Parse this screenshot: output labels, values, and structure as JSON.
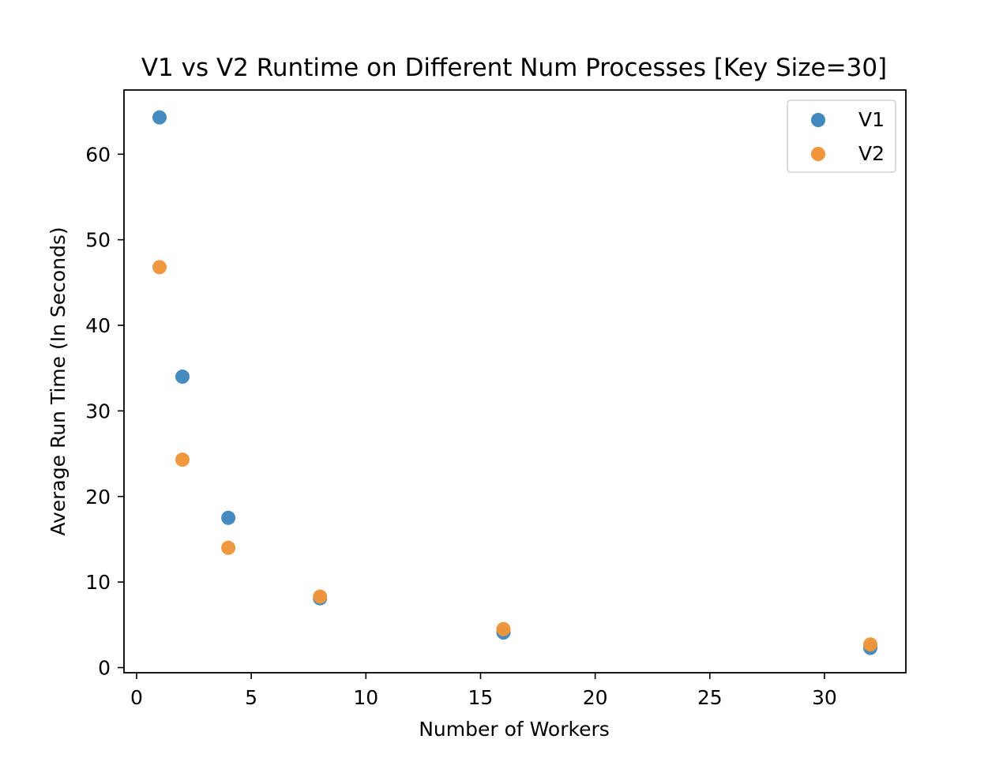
{
  "chart_data": {
    "type": "scatter",
    "title": "V1 vs V2 Runtime on Different Num Processes [Key Size=30]",
    "xlabel": "Number of Workers",
    "ylabel": "Average Run Time (In Seconds)",
    "xlim": [
      -0.55,
      33.55
    ],
    "ylim": [
      -0.6,
      67.5
    ],
    "xticks": [
      0,
      5,
      10,
      15,
      20,
      25,
      30
    ],
    "yticks": [
      0,
      10,
      20,
      30,
      40,
      50,
      60
    ],
    "grid": false,
    "legend_position": "top-right",
    "series": [
      {
        "name": "V1",
        "color": "#3f87bd",
        "x": [
          1,
          2,
          4,
          8,
          16,
          32
        ],
        "y": [
          64.3,
          34.0,
          17.5,
          8.1,
          4.1,
          2.3
        ]
      },
      {
        "name": "V2",
        "color": "#f0953a",
        "x": [
          1,
          2,
          4,
          8,
          16,
          32
        ],
        "y": [
          46.8,
          24.3,
          14.0,
          8.3,
          4.5,
          2.7
        ]
      }
    ]
  }
}
